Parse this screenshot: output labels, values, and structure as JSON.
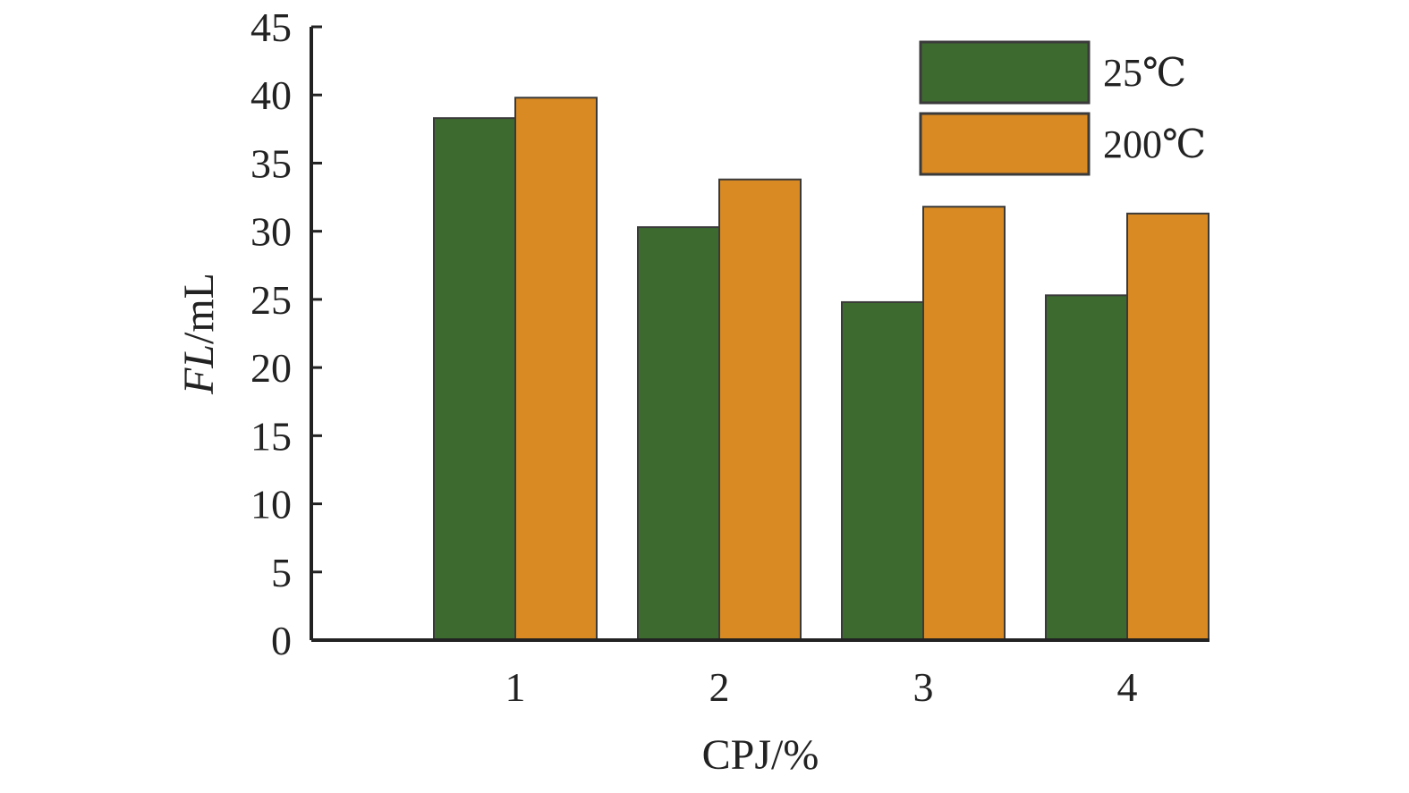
{
  "chart_data": {
    "type": "bar",
    "title": "",
    "xlabel": "CPJ/%",
    "ylabel_italic": "FL",
    "ylabel_unit": "/mL",
    "categories": [
      "1",
      "2",
      "3",
      "4"
    ],
    "ylim": [
      0,
      45
    ],
    "yticks": [
      "0",
      "5",
      "10",
      "15",
      "20",
      "25",
      "30",
      "35",
      "40",
      "45"
    ],
    "grid": false,
    "legend_position": "top-right",
    "series": [
      {
        "name": "25℃",
        "color": "#3d6b2f",
        "values": [
          38.3,
          30.3,
          24.8,
          25.3
        ]
      },
      {
        "name": "200℃",
        "color": "#d98a22",
        "values": [
          39.8,
          33.8,
          31.8,
          31.3
        ]
      }
    ]
  }
}
